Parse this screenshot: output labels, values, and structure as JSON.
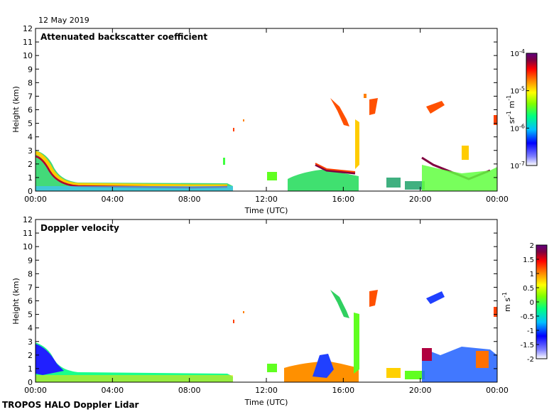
{
  "header": {
    "date": "12 May 2019"
  },
  "footer": {
    "label": "TROPOS HALO Doppler Lidar"
  },
  "colors": {
    "axes": "#000000",
    "colormap": [
      "#ffffff",
      "#8080ff",
      "#0000ff",
      "#00c0ff",
      "#00ff80",
      "#80ff00",
      "#ffff00",
      "#ff8000",
      "#ff0000",
      "#800040",
      "#600080"
    ]
  },
  "chart_data": [
    {
      "type": "heatmap",
      "title": "Attenuated backscatter coefficient",
      "xlabel": "Time (UTC)",
      "ylabel": "Height (km)",
      "x_ticks": [
        "00:00",
        "04:00",
        "08:00",
        "12:00",
        "16:00",
        "20:00",
        "00:00"
      ],
      "xlim_hours": [
        0,
        24
      ],
      "y_ticks": [
        "0",
        "1",
        "2",
        "3",
        "4",
        "5",
        "6",
        "7",
        "8",
        "9",
        "10",
        "11",
        "12"
      ],
      "ylim_km": [
        0,
        12
      ],
      "colorbar": {
        "label_base": "sr",
        "label_exp1": "-1",
        "label_mid": " m",
        "label_exp2": "-1",
        "scale": "log",
        "range": [
          1e-07,
          0.0001
        ],
        "ticks": [
          {
            "base": "10",
            "exp": "-4"
          },
          {
            "base": "10",
            "exp": "-5"
          },
          {
            "base": "10",
            "exp": "-6"
          },
          {
            "base": "10",
            "exp": "-7"
          }
        ]
      },
      "features": [
        {
          "desc": "boundary layer",
          "t": [
            0,
            10
          ],
          "h": [
            0,
            3
          ],
          "value_log": -5.2
        },
        {
          "desc": "clouds 16:00",
          "t": [
            14.5,
            17.5
          ],
          "h": [
            0,
            6.8
          ],
          "value_log": -5.5
        },
        {
          "desc": "clouds 20:00-24:00",
          "t": [
            20,
            24
          ],
          "h": [
            0,
            6.5
          ],
          "value_log": -5.4
        }
      ]
    },
    {
      "type": "heatmap",
      "title": "Doppler velocity",
      "xlabel": "Time (UTC)",
      "ylabel": "Height (km)",
      "x_ticks": [
        "00:00",
        "04:00",
        "08:00",
        "12:00",
        "16:00",
        "20:00",
        "00:00"
      ],
      "xlim_hours": [
        0,
        24
      ],
      "y_ticks": [
        "0",
        "1",
        "2",
        "3",
        "4",
        "5",
        "6",
        "7",
        "8",
        "9",
        "10",
        "11",
        "12"
      ],
      "ylim_km": [
        0,
        12
      ],
      "colorbar": {
        "label_base": "m s",
        "label_exp1": "-1",
        "scale": "linear",
        "range": [
          -2,
          2
        ],
        "ticks": [
          "2",
          "1.5",
          "1",
          "0.5",
          "0",
          "-0.5",
          "-1",
          "-1.5",
          "-2"
        ]
      },
      "features": [
        {
          "desc": "boundary layer",
          "t": [
            0,
            10
          ],
          "h": [
            0,
            3
          ],
          "value": -0.8
        },
        {
          "desc": "clouds 16:00",
          "t": [
            14.5,
            17.5
          ],
          "h": [
            0,
            6.8
          ],
          "value": 0.2
        },
        {
          "desc": "clouds 20:00-24:00",
          "t": [
            20,
            24
          ],
          "h": [
            0,
            6.5
          ],
          "value": 0.5
        }
      ]
    }
  ]
}
